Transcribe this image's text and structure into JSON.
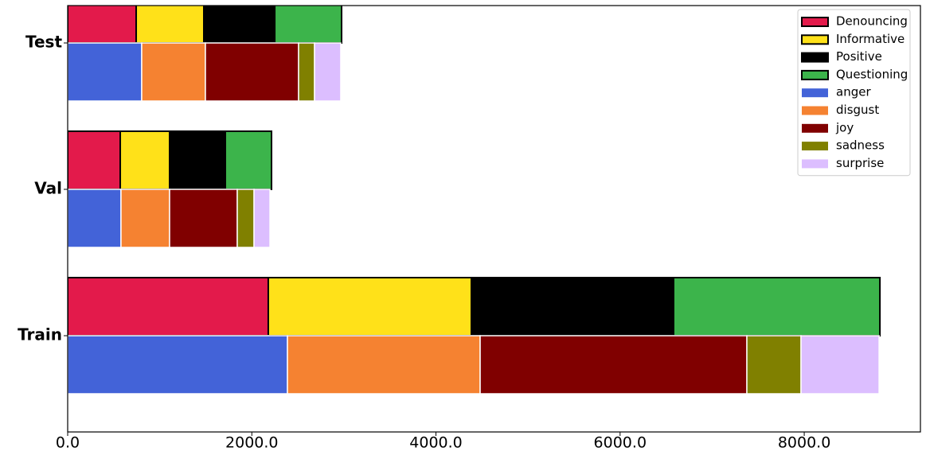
{
  "chart_data": {
    "type": "stacked-barh-pair",
    "categories": [
      "Train",
      "Val",
      "Test"
    ],
    "series": [
      {
        "name": "Denouncing",
        "color": "#e31a4b",
        "stack": 0,
        "edgecolor": "#000000",
        "values": [
          2179,
          571,
          744
        ]
      },
      {
        "name": "Informative",
        "color": "#ffe119",
        "stack": 0,
        "edgecolor": "#000000",
        "values": [
          2206,
          536,
          735
        ]
      },
      {
        "name": "Positive",
        "color": "#000000",
        "stack": 0,
        "edgecolor": "#000000",
        "values": [
          2196,
          605,
          770
        ]
      },
      {
        "name": "Questioning",
        "color": "#3cb44b",
        "stack": 0,
        "edgecolor": "#000000",
        "values": [
          2241,
          502,
          726
        ]
      },
      {
        "name": "anger",
        "color": "#4363d8",
        "stack": 1,
        "values": [
          2387,
          579,
          804
        ]
      },
      {
        "name": "disgust",
        "color": "#f58231",
        "stack": 1,
        "values": [
          2093,
          528,
          692
        ]
      },
      {
        "name": "joy",
        "color": "#800000",
        "stack": 1,
        "values": [
          2897,
          735,
          1012
        ]
      },
      {
        "name": "sadness",
        "color": "#808000",
        "stack": 1,
        "values": [
          588,
          182,
          173
        ]
      },
      {
        "name": "surprise",
        "color": "#dcbeff",
        "stack": 1,
        "values": [
          848,
          173,
          285
        ]
      }
    ],
    "xlim": [
      0,
      9262
    ],
    "xticks": [
      {
        "value": 0,
        "label": "0.0"
      },
      {
        "value": 2000,
        "label": "2000.0"
      },
      {
        "value": 4000,
        "label": "4000.0"
      },
      {
        "value": 6000,
        "label": "6000.0"
      },
      {
        "value": 8000,
        "label": "8000.0"
      }
    ],
    "legend": "upper right"
  }
}
